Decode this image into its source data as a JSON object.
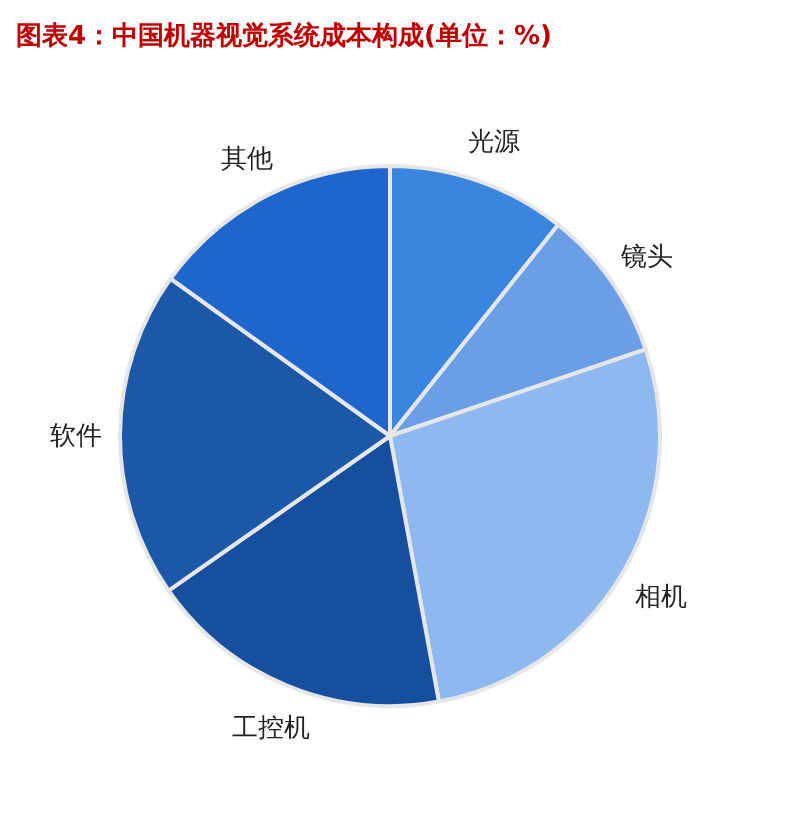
{
  "chart_data": {
    "type": "pie",
    "title": "图表4：中国机器视觉系统成本构成(单位：%)",
    "categories": [
      "光源",
      "镜头",
      "相机",
      "工控机",
      "软件",
      "其他"
    ],
    "values": [
      10.7,
      9.1,
      27.3,
      18.2,
      19.6,
      15.1
    ],
    "colors": [
      "#3a85e0",
      "#6a9fe8",
      "#8db8f0",
      "#164f9e",
      "#1b59a8",
      "#1f66cc"
    ]
  }
}
